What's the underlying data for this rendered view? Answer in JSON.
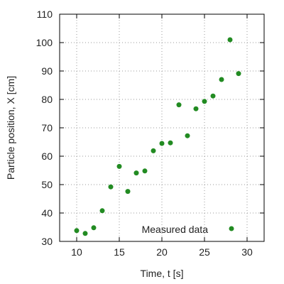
{
  "chart_data": {
    "type": "scatter",
    "xlabel": "Time, t [s]",
    "ylabel": "Particle position, X [cm]",
    "xlim": [
      8,
      32
    ],
    "ylim": [
      30,
      110
    ],
    "xticks": [
      10,
      15,
      20,
      25,
      30
    ],
    "yticks": [
      30,
      40,
      50,
      60,
      70,
      80,
      90,
      100,
      110
    ],
    "grid": true,
    "legend_position": "bottom-right",
    "series": [
      {
        "name": "Measured data",
        "color": "#228b22",
        "x": [
          10,
          11,
          12,
          13,
          14,
          15,
          16,
          17,
          18,
          19,
          20,
          21,
          22,
          23,
          24,
          25,
          26,
          27,
          28,
          29
        ],
        "y": [
          33.8,
          32.8,
          34.8,
          40.8,
          49.2,
          56.4,
          47.6,
          54.1,
          54.8,
          61.9,
          64.5,
          64.7,
          78.1,
          67.2,
          76.7,
          79.3,
          81.2,
          87.0,
          101.0,
          89.1
        ]
      }
    ]
  }
}
